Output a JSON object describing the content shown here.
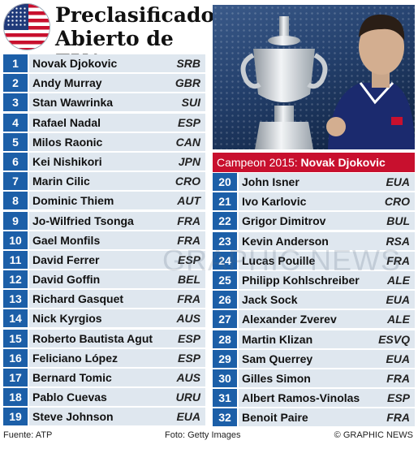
{
  "title_line1": "Preclasificados",
  "title_line2": "Abierto de EUA",
  "caption": {
    "label": "Campeon 2015:",
    "champion": "Novak Djokovic"
  },
  "watermark": "GRAPHIC NEWS",
  "footer": {
    "source": "Fuente: ATP",
    "photo": "Foto: Getty Images",
    "brand": "© GRAPHIC NEWS"
  },
  "colors": {
    "number_bg": "#1c5fa8",
    "row_bg": "#dfe7ef",
    "caption_bg": "#c8102e"
  },
  "seeds_left": [
    {
      "seed": "1",
      "name": "Novak Djokovic",
      "country": "SRB"
    },
    {
      "seed": "2",
      "name": "Andy Murray",
      "country": "GBR"
    },
    {
      "seed": "3",
      "name": "Stan Wawrinka",
      "country": "SUI"
    },
    {
      "seed": "4",
      "name": "Rafael Nadal",
      "country": "ESP"
    },
    {
      "seed": "5",
      "name": "Milos Raonic",
      "country": "CAN"
    },
    {
      "seed": "6",
      "name": "Kei Nishikori",
      "country": "JPN"
    },
    {
      "seed": "7",
      "name": "Marin Cilic",
      "country": "CRO"
    },
    {
      "seed": "8",
      "name": "Dominic Thiem",
      "country": "AUT"
    },
    {
      "seed": "9",
      "name": "Jo-Wilfried Tsonga",
      "country": "FRA"
    },
    {
      "seed": "10",
      "name": "Gael Monfils",
      "country": "FRA"
    },
    {
      "seed": "11",
      "name": "David Ferrer",
      "country": "ESP"
    },
    {
      "seed": "12",
      "name": "David Goffin",
      "country": "BEL"
    },
    {
      "seed": "13",
      "name": "Richard Gasquet",
      "country": "FRA"
    },
    {
      "seed": "14",
      "name": "Nick Kyrgios",
      "country": "AUS"
    },
    {
      "seed": "15",
      "name": "Roberto Bautista Agut",
      "country": "ESP"
    },
    {
      "seed": "16",
      "name": "Feliciano López",
      "country": "ESP"
    },
    {
      "seed": "17",
      "name": "Bernard Tomic",
      "country": "AUS"
    },
    {
      "seed": "18",
      "name": "Pablo Cuevas",
      "country": "URU"
    },
    {
      "seed": "19",
      "name": "Steve Johnson",
      "country": "EUA"
    }
  ],
  "seeds_right": [
    {
      "seed": "20",
      "name": "John Isner",
      "country": "EUA"
    },
    {
      "seed": "21",
      "name": "Ivo Karlovic",
      "country": "CRO"
    },
    {
      "seed": "22",
      "name": "Grigor Dimitrov",
      "country": "BUL"
    },
    {
      "seed": "23",
      "name": "Kevin Anderson",
      "country": "RSA"
    },
    {
      "seed": "24",
      "name": "Lucas Pouille",
      "country": "FRA"
    },
    {
      "seed": "25",
      "name": "Philipp Kohlschreiber",
      "country": "ALE"
    },
    {
      "seed": "26",
      "name": "Jack Sock",
      "country": "EUA"
    },
    {
      "seed": "27",
      "name": "Alexander Zverev",
      "country": "ALE"
    },
    {
      "seed": "28",
      "name": "Martin Klizan",
      "country": "ESVQ"
    },
    {
      "seed": "29",
      "name": "Sam Querrey",
      "country": "EUA"
    },
    {
      "seed": "30",
      "name": "Gilles Simon",
      "country": "FRA"
    },
    {
      "seed": "31",
      "name": "Albert Ramos-Vinolas",
      "country": "ESP"
    },
    {
      "seed": "32",
      "name": "Benoit Paire",
      "country": "FRA"
    }
  ]
}
